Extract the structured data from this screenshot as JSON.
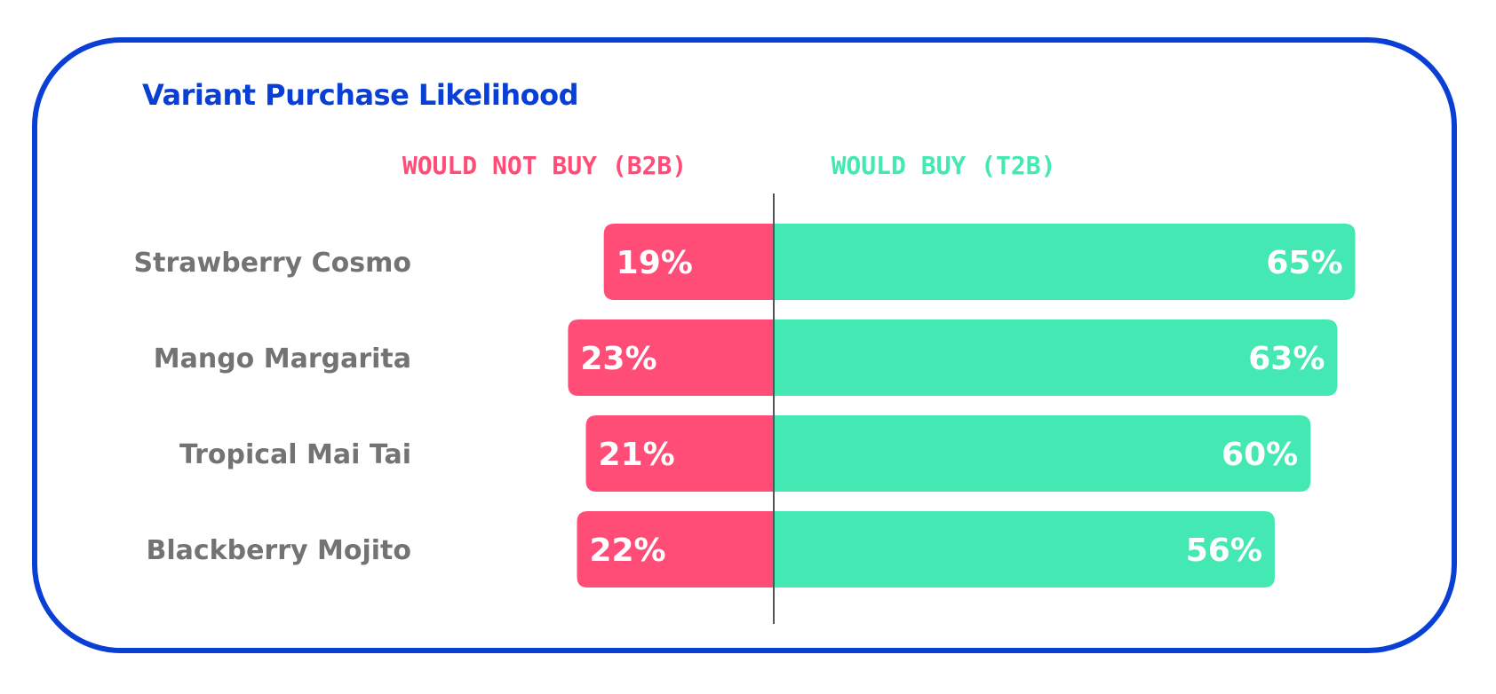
{
  "colors": {
    "frame": "#0a3fd6",
    "negative": "#ff4d78",
    "positive": "#43e8b2",
    "category_text": "#737373",
    "value_text": "#ffffff",
    "axis": "#555555"
  },
  "chart_data": {
    "type": "bar",
    "orientation": "horizontal-diverging",
    "title": "Variant Purchase Likelihood",
    "categories": [
      "Strawberry Cosmo",
      "Mango Margarita",
      "Tropical Mai Tai",
      "Blackberry Mojito"
    ],
    "series": [
      {
        "name": "WOULD NOT BUY (B2B)",
        "direction": "left",
        "values": [
          19,
          23,
          21,
          22
        ],
        "labels": [
          "19%",
          "23%",
          "21%",
          "22%"
        ]
      },
      {
        "name": "WOULD BUY (T2B)",
        "direction": "right",
        "values": [
          65,
          63,
          60,
          56
        ],
        "labels": [
          "65%",
          "63%",
          "60%",
          "56%"
        ]
      }
    ],
    "unit": "%",
    "grid": false,
    "legend_position": "top"
  }
}
